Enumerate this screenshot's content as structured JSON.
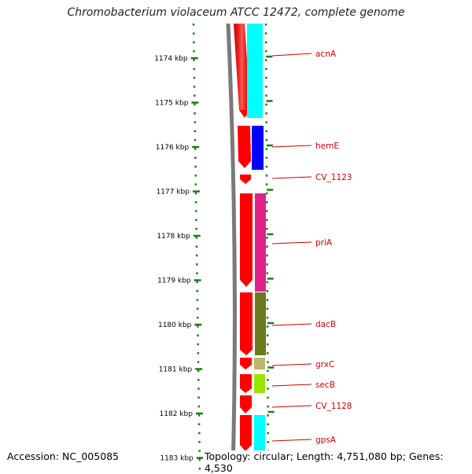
{
  "title": "Chromobacterium violaceum ATCC 12472, complete genome",
  "footer": {
    "accession": "Accession: NC_005085",
    "topology": "Topology: circular; Length: 4,751,080 bp; Genes: 4,530"
  },
  "ruler": {
    "ticks": [
      "1174 kbp",
      "1175 kbp",
      "1176 kbp",
      "1177 kbp",
      "1178 kbp",
      "1179 kbp",
      "1180 kbp",
      "1181 kbp",
      "1182 kbp",
      "1183 kbp"
    ],
    "color": "#1a7a1a"
  },
  "genes": [
    {
      "name": "acnA",
      "color": "#00ffff"
    },
    {
      "name": "hemE",
      "color": "#0000ff"
    },
    {
      "name": "CV_1123",
      "color": "#ff0000"
    },
    {
      "name": "priA",
      "color": "#e0218a"
    },
    {
      "name": "dacB",
      "color": "#6b7a1e"
    },
    {
      "name": "grxC",
      "color": "#bdb76b"
    },
    {
      "name": "secB",
      "color": "#99e600"
    },
    {
      "name": "CV_1128",
      "color": "#ff0000"
    },
    {
      "name": "gpsA",
      "color": "#00ffff"
    }
  ],
  "label_color": "#cc0000",
  "backbone_color": "#7a7a7a",
  "strand_color": "#ff0000"
}
